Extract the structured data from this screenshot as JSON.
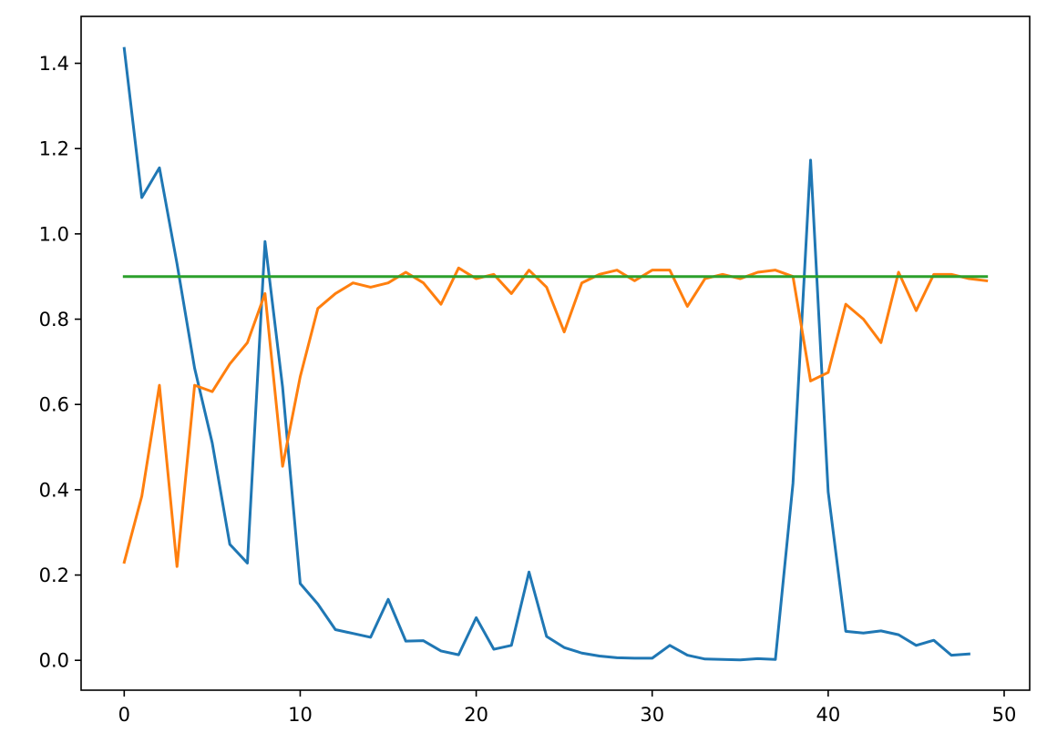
{
  "chart_data": {
    "type": "line",
    "title": "",
    "xlabel": "",
    "ylabel": "",
    "xlim": [
      -2.45,
      51.45
    ],
    "ylim": [
      -0.07,
      1.51
    ],
    "xticks": [
      0,
      10,
      20,
      30,
      40,
      50
    ],
    "yticks": [
      0.0,
      0.2,
      0.4,
      0.6,
      0.8,
      1.0,
      1.2,
      1.4
    ],
    "xtick_labels": [
      "0",
      "10",
      "20",
      "30",
      "40",
      "50"
    ],
    "ytick_labels": [
      "0.0",
      "0.2",
      "0.4",
      "0.6",
      "0.8",
      "1.0",
      "1.2",
      "1.4"
    ],
    "grid": false,
    "legend": "none",
    "series": [
      {
        "color": "#1f77b4",
        "x": [
          0,
          1,
          2,
          3,
          4,
          5,
          6,
          7,
          8,
          9,
          10,
          11,
          12,
          13,
          14,
          15,
          16,
          17,
          18,
          19,
          20,
          21,
          22,
          23,
          24,
          25,
          26,
          27,
          28,
          29,
          30,
          31,
          32,
          33,
          34,
          35,
          36,
          37,
          38,
          39,
          40,
          41,
          42,
          43,
          44,
          45,
          46,
          47,
          48
        ],
        "y": [
          1.435,
          1.085,
          1.155,
          0.93,
          0.685,
          0.51,
          0.272,
          0.228,
          0.982,
          0.64,
          0.18,
          0.132,
          0.072,
          0.063,
          0.054,
          0.143,
          0.045,
          0.046,
          0.022,
          0.013,
          0.1,
          0.026,
          0.035,
          0.207,
          0.056,
          0.03,
          0.017,
          0.01,
          0.006,
          0.005,
          0.005,
          0.035,
          0.012,
          0.003,
          0.002,
          0.001,
          0.004,
          0.002,
          0.415,
          1.173,
          0.395,
          0.068,
          0.064,
          0.069,
          0.06,
          0.035,
          0.047,
          0.012,
          0.015
        ]
      },
      {
        "color": "#ff7f0e",
        "x": [
          0,
          1,
          2,
          3,
          4,
          5,
          6,
          7,
          8,
          9,
          10,
          11,
          12,
          13,
          14,
          15,
          16,
          17,
          18,
          19,
          20,
          21,
          22,
          23,
          24,
          25,
          26,
          27,
          28,
          29,
          30,
          31,
          32,
          33,
          34,
          35,
          36,
          37,
          38,
          39,
          40,
          41,
          42,
          43,
          44,
          45,
          46,
          47,
          48,
          49
        ],
        "y": [
          0.23,
          0.385,
          0.645,
          0.22,
          0.645,
          0.63,
          0.695,
          0.745,
          0.86,
          0.455,
          0.665,
          0.825,
          0.86,
          0.885,
          0.875,
          0.885,
          0.91,
          0.885,
          0.835,
          0.92,
          0.895,
          0.905,
          0.86,
          0.915,
          0.875,
          0.77,
          0.885,
          0.905,
          0.915,
          0.89,
          0.915,
          0.915,
          0.83,
          0.895,
          0.905,
          0.895,
          0.91,
          0.915,
          0.9,
          0.655,
          0.675,
          0.835,
          0.8,
          0.745,
          0.91,
          0.82,
          0.905,
          0.905,
          0.895,
          0.89
        ]
      },
      {
        "color": "#2ca02c",
        "x": [
          0,
          49
        ],
        "y": [
          0.9,
          0.9
        ]
      }
    ]
  }
}
